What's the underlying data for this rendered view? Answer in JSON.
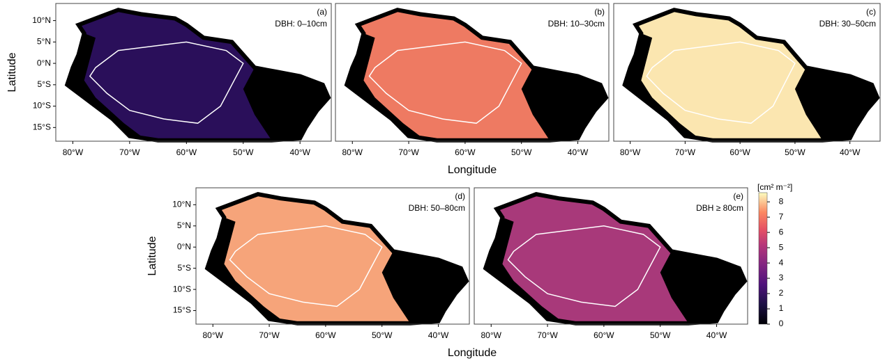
{
  "x_label": "Longitude",
  "y_label": "Latitude",
  "xlim": [
    -83,
    -34.5
  ],
  "ylim": [
    -18.2,
    14
  ],
  "xticks": [
    {
      "value": -80,
      "label": "80°W"
    },
    {
      "value": -70,
      "label": "70°W"
    },
    {
      "value": -60,
      "label": "60°W"
    },
    {
      "value": -50,
      "label": "50°W"
    },
    {
      "value": -40,
      "label": "40°W"
    }
  ],
  "yticks": [
    {
      "value": 10,
      "label": "10°N"
    },
    {
      "value": 5,
      "label": "5°N"
    },
    {
      "value": 0,
      "label": "0°N"
    },
    {
      "value": -5,
      "label": "5°S"
    },
    {
      "value": -10,
      "label": "10°S"
    },
    {
      "value": -15,
      "label": "15°S"
    }
  ],
  "panels": [
    {
      "label": "(a)",
      "dbh": "DBH: 0–10cm",
      "color": "#2a0f5a"
    },
    {
      "label": "(b)",
      "dbh": "DBH: 10–30cm",
      "color": "#ee7a62"
    },
    {
      "label": "(c)",
      "dbh": "DBH: 30–50cm",
      "color": "#fbe6b0"
    },
    {
      "label": "(d)",
      "dbh": "DBH: 50–80cm",
      "color": "#f6a47a"
    },
    {
      "label": "(e)",
      "dbh": "DBH ≥ 80cm",
      "color": "#a8397a"
    }
  ],
  "colorbar": {
    "label": "[cm² m⁻²]",
    "lim": [
      0,
      8.6
    ],
    "ticks": [
      0,
      1,
      2,
      3,
      4,
      5,
      6,
      7,
      8
    ]
  }
}
